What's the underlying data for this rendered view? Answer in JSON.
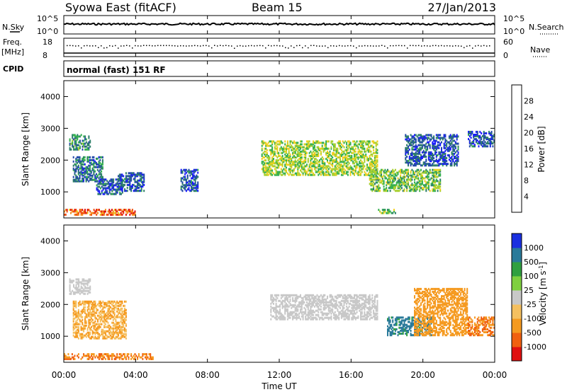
{
  "header": {
    "station": "Syowa East (fitACF)",
    "beam": "Beam 15",
    "date": "27/Jan/2013"
  },
  "top_panels": {
    "nsky_label": "N.Sky",
    "nsky_ticks": [
      "10^5",
      "10^0"
    ],
    "nsearch_label": "N.Search",
    "nsearch_ticks": [
      "10^5",
      "10^0"
    ],
    "freq_label": "Freq.",
    "freq_unit": "[MHz]",
    "freq_ticks": [
      "18",
      "8"
    ],
    "nave_label": "Nave",
    "nave_ticks": [
      "60",
      "0"
    ],
    "cpid_label": "CPID",
    "cpid_value": "normal (fast) 151 RF"
  },
  "colors": {
    "power": [
      "#1a1aff",
      "#224aa8",
      "#2e7f6a",
      "#35b050",
      "#a8d030",
      "#f0d020",
      "#f59020",
      "#f05010",
      "#e01010"
    ],
    "velocity": [
      "#e01010",
      "#f06010",
      "#f59a20",
      "#f5c060",
      "#c8c8c8",
      "#7fd040",
      "#30a040",
      "#2a7a9a",
      "#1a30e0"
    ]
  },
  "chart_data": [
    {
      "type": "heatmap",
      "name": "Power",
      "ylabel": "Slant Range [km]",
      "ylim": [
        180,
        4500
      ],
      "yticks": [
        "1000",
        "2000",
        "3000",
        "4000"
      ],
      "ytick_values": [
        1000,
        2000,
        3000,
        4000
      ],
      "xlabel": "Time UT",
      "xlim": [
        0,
        24
      ],
      "xticks": [
        "00:00",
        "04:00",
        "08:00",
        "12:00",
        "16:00",
        "20:00",
        "00:00"
      ],
      "xtick_values": [
        0,
        4,
        8,
        12,
        16,
        20,
        24
      ],
      "colorbar": {
        "label": "Power [dB]",
        "ticks": [
          "4",
          "8",
          "12",
          "16",
          "20",
          "24",
          "28"
        ],
        "tick_values": [
          4,
          8,
          12,
          16,
          20,
          24,
          28
        ],
        "range": [
          0,
          32
        ]
      },
      "regions": [
        {
          "t": [
            0.0,
            4.0
          ],
          "r": [
            250,
            450
          ],
          "v": 26
        },
        {
          "t": [
            0.3,
            1.5
          ],
          "r": [
            2300,
            2800
          ],
          "v": 10
        },
        {
          "t": [
            0.5,
            2.2
          ],
          "r": [
            1300,
            2100
          ],
          "v": 8
        },
        {
          "t": [
            1.8,
            3.3
          ],
          "r": [
            900,
            1400
          ],
          "v": 6
        },
        {
          "t": [
            3.0,
            4.5
          ],
          "r": [
            1000,
            1600
          ],
          "v": 6
        },
        {
          "t": [
            6.5,
            7.5
          ],
          "r": [
            1000,
            1700
          ],
          "v": 6
        },
        {
          "t": [
            11.0,
            17.5
          ],
          "r": [
            1500,
            2600
          ],
          "v": 16
        },
        {
          "t": [
            17.0,
            21.0
          ],
          "r": [
            1000,
            1700
          ],
          "v": 14
        },
        {
          "t": [
            19.0,
            22.0
          ],
          "r": [
            1800,
            2800
          ],
          "v": 6
        },
        {
          "t": [
            22.5,
            24.0
          ],
          "r": [
            2400,
            2900
          ],
          "v": 6
        },
        {
          "t": [
            17.5,
            18.5
          ],
          "r": [
            300,
            450
          ],
          "v": 14
        }
      ]
    },
    {
      "type": "heatmap",
      "name": "Velocity",
      "ylabel": "Slant Range [km]",
      "ylim": [
        180,
        4500
      ],
      "yticks": [
        "1000",
        "2000",
        "3000",
        "4000"
      ],
      "ytick_values": [
        1000,
        2000,
        3000,
        4000
      ],
      "xlabel": "Time UT",
      "xlim": [
        0,
        24
      ],
      "xticks": [
        "00:00",
        "04:00",
        "08:00",
        "12:00",
        "16:00",
        "20:00",
        "00:00"
      ],
      "xtick_values": [
        0,
        4,
        8,
        12,
        16,
        20,
        24
      ],
      "colorbar": {
        "label": "Velocity [m s^-1]",
        "ticks": [
          "1000",
          "500",
          "100",
          "25",
          "-25",
          "-100",
          "-500",
          "-1000"
        ]
      },
      "regions": [
        {
          "t": [
            0.0,
            5.0
          ],
          "r": [
            250,
            450
          ],
          "v": -500
        },
        {
          "t": [
            0.3,
            1.5
          ],
          "r": [
            2300,
            2800
          ],
          "v": 0
        },
        {
          "t": [
            0.5,
            3.5
          ],
          "r": [
            900,
            2100
          ],
          "v": -100
        },
        {
          "t": [
            11.5,
            17.5
          ],
          "r": [
            1500,
            2300
          ],
          "v": 0
        },
        {
          "t": [
            18.0,
            20.5
          ],
          "r": [
            1000,
            1600
          ],
          "v": 700
        },
        {
          "t": [
            19.5,
            22.5
          ],
          "r": [
            1000,
            2500
          ],
          "v": -200
        },
        {
          "t": [
            22.5,
            24.0
          ],
          "r": [
            1000,
            1600
          ],
          "v": -500
        }
      ]
    }
  ]
}
